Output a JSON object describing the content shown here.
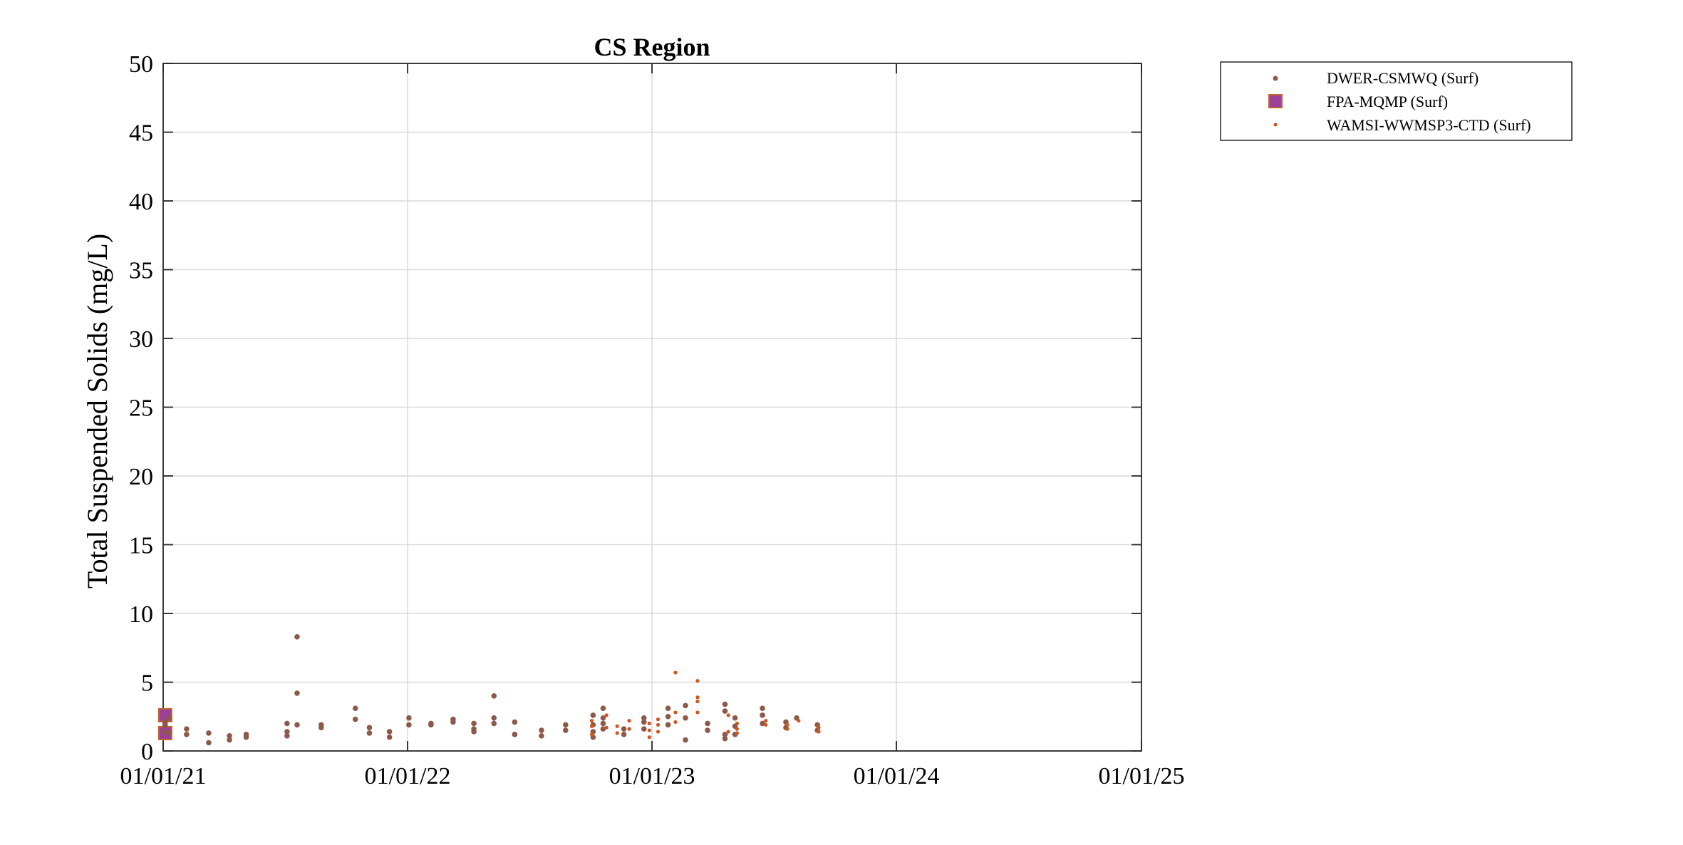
{
  "colors": {
    "background": "#ffffff",
    "grid": "#d9d9d9",
    "axis": "#262626",
    "dwer_marker": "#8c5a4a",
    "fpa_face": "#9b3f98",
    "fpa_edge": "#c1642b",
    "wamsi_marker": "#d0561c"
  },
  "chart_data": {
    "type": "scatter",
    "title": "CS Region",
    "xlabel": "",
    "ylabel": "Total Suspended Solids (mg/L)",
    "x_type": "date",
    "xlim": [
      "2021-01-01",
      "2025-01-01"
    ],
    "ylim": [
      0,
      50
    ],
    "x_ticks": [
      "2021-01-01",
      "2022-01-01",
      "2023-01-01",
      "2024-01-01",
      "2025-01-01"
    ],
    "x_tick_labels": [
      "01/01/21",
      "01/01/22",
      "01/01/23",
      "01/01/24",
      "01/01/25"
    ],
    "y_ticks": [
      0,
      5,
      10,
      15,
      20,
      25,
      30,
      35,
      40,
      45,
      50
    ],
    "y_tick_labels": [
      "0",
      "5",
      "10",
      "15",
      "20",
      "25",
      "30",
      "35",
      "40",
      "45",
      "50"
    ],
    "grid": true,
    "legend_position": "outside-top-right",
    "series": [
      {
        "name": "DWER-CSMWQ (Surf)",
        "marker": "dot",
        "color": "#8c5a4a",
        "points": [
          [
            "2021-01-04",
            1.4
          ],
          [
            "2021-01-04",
            1.9
          ],
          [
            "2021-01-04",
            2.1
          ],
          [
            "2021-01-10",
            2.4
          ],
          [
            "2021-01-10",
            1.3
          ],
          [
            "2021-02-05",
            1.6
          ],
          [
            "2021-02-05",
            1.2
          ],
          [
            "2021-03-10",
            1.3
          ],
          [
            "2021-03-10",
            0.6
          ],
          [
            "2021-04-10",
            1.1
          ],
          [
            "2021-04-10",
            0.8
          ],
          [
            "2021-05-05",
            1.2
          ],
          [
            "2021-05-05",
            1.0
          ],
          [
            "2021-07-05",
            2.0
          ],
          [
            "2021-07-05",
            1.4
          ],
          [
            "2021-07-05",
            1.1
          ],
          [
            "2021-07-20",
            8.3
          ],
          [
            "2021-07-20",
            4.2
          ],
          [
            "2021-07-20",
            1.9
          ],
          [
            "2021-08-25",
            1.9
          ],
          [
            "2021-08-25",
            1.7
          ],
          [
            "2021-10-15",
            3.1
          ],
          [
            "2021-10-15",
            2.3
          ],
          [
            "2021-11-05",
            1.7
          ],
          [
            "2021-11-05",
            1.3
          ],
          [
            "2021-12-05",
            1.4
          ],
          [
            "2021-12-05",
            1.0
          ],
          [
            "2022-01-03",
            2.4
          ],
          [
            "2022-01-03",
            1.9
          ],
          [
            "2022-02-05",
            2.0
          ],
          [
            "2022-02-05",
            1.9
          ],
          [
            "2022-03-10",
            2.3
          ],
          [
            "2022-03-10",
            2.1
          ],
          [
            "2022-04-10",
            2.0
          ],
          [
            "2022-04-10",
            1.6
          ],
          [
            "2022-04-10",
            1.4
          ],
          [
            "2022-05-10",
            4.0
          ],
          [
            "2022-05-10",
            2.4
          ],
          [
            "2022-05-10",
            2.0
          ],
          [
            "2022-06-10",
            2.1
          ],
          [
            "2022-06-10",
            1.2
          ],
          [
            "2022-07-20",
            1.5
          ],
          [
            "2022-07-20",
            1.1
          ],
          [
            "2022-08-25",
            1.9
          ],
          [
            "2022-08-25",
            1.5
          ],
          [
            "2022-10-05",
            2.6
          ],
          [
            "2022-10-05",
            1.9
          ],
          [
            "2022-10-05",
            1.4
          ],
          [
            "2022-10-05",
            1.0
          ],
          [
            "2022-10-20",
            3.1
          ],
          [
            "2022-10-20",
            2.4
          ],
          [
            "2022-10-20",
            2.0
          ],
          [
            "2022-10-20",
            1.6
          ],
          [
            "2022-11-20",
            1.6
          ],
          [
            "2022-11-20",
            1.2
          ],
          [
            "2022-12-20",
            2.4
          ],
          [
            "2022-12-20",
            2.1
          ],
          [
            "2022-12-20",
            1.6
          ],
          [
            "2023-01-25",
            3.1
          ],
          [
            "2023-01-25",
            2.5
          ],
          [
            "2023-01-25",
            1.9
          ],
          [
            "2023-02-20",
            3.3
          ],
          [
            "2023-02-20",
            2.4
          ],
          [
            "2023-02-20",
            0.8
          ],
          [
            "2023-03-25",
            2.0
          ],
          [
            "2023-03-25",
            1.5
          ],
          [
            "2023-04-20",
            3.4
          ],
          [
            "2023-04-20",
            2.9
          ],
          [
            "2023-04-20",
            1.2
          ],
          [
            "2023-04-20",
            0.9
          ],
          [
            "2023-05-05",
            2.4
          ],
          [
            "2023-05-05",
            1.8
          ],
          [
            "2023-05-05",
            1.2
          ],
          [
            "2023-06-15",
            3.1
          ],
          [
            "2023-06-15",
            2.6
          ],
          [
            "2023-06-15",
            2.0
          ],
          [
            "2023-07-20",
            2.1
          ],
          [
            "2023-07-20",
            1.7
          ],
          [
            "2023-08-05",
            2.4
          ],
          [
            "2023-09-05",
            1.9
          ],
          [
            "2023-09-05",
            1.5
          ]
        ]
      },
      {
        "name": "FPA-MQMP (Surf)",
        "marker": "square",
        "color": "#9b3f98",
        "points": [
          [
            "2021-01-04",
            2.6
          ],
          [
            "2021-01-04",
            1.3
          ]
        ]
      },
      {
        "name": "WAMSI-WWMSP3-CTD (Surf)",
        "marker": "small-dot",
        "color": "#d0561c",
        "points": [
          [
            "2022-10-03",
            2.2
          ],
          [
            "2022-10-03",
            1.8
          ],
          [
            "2022-10-03",
            1.2
          ],
          [
            "2022-10-25",
            2.6
          ],
          [
            "2022-10-25",
            1.7
          ],
          [
            "2022-11-10",
            1.8
          ],
          [
            "2022-11-10",
            1.3
          ],
          [
            "2022-11-28",
            2.2
          ],
          [
            "2022-11-28",
            1.6
          ],
          [
            "2022-12-28",
            2.0
          ],
          [
            "2022-12-28",
            1.5
          ],
          [
            "2022-12-28",
            1.0
          ],
          [
            "2023-01-10",
            2.3
          ],
          [
            "2023-01-10",
            1.9
          ],
          [
            "2023-01-10",
            1.4
          ],
          [
            "2023-02-05",
            5.7
          ],
          [
            "2023-02-05",
            2.8
          ],
          [
            "2023-02-05",
            2.1
          ],
          [
            "2023-03-10",
            5.1
          ],
          [
            "2023-03-10",
            3.9
          ],
          [
            "2023-03-10",
            3.6
          ],
          [
            "2023-03-10",
            2.8
          ],
          [
            "2023-04-25",
            2.6
          ],
          [
            "2023-04-25",
            1.4
          ],
          [
            "2023-05-08",
            2.0
          ],
          [
            "2023-05-08",
            1.6
          ],
          [
            "2023-05-08",
            1.3
          ],
          [
            "2023-06-20",
            2.2
          ],
          [
            "2023-06-20",
            1.9
          ],
          [
            "2023-07-22",
            1.9
          ],
          [
            "2023-07-22",
            1.6
          ],
          [
            "2023-08-08",
            2.2
          ],
          [
            "2023-09-07",
            1.7
          ],
          [
            "2023-09-07",
            1.4
          ]
        ]
      }
    ]
  }
}
